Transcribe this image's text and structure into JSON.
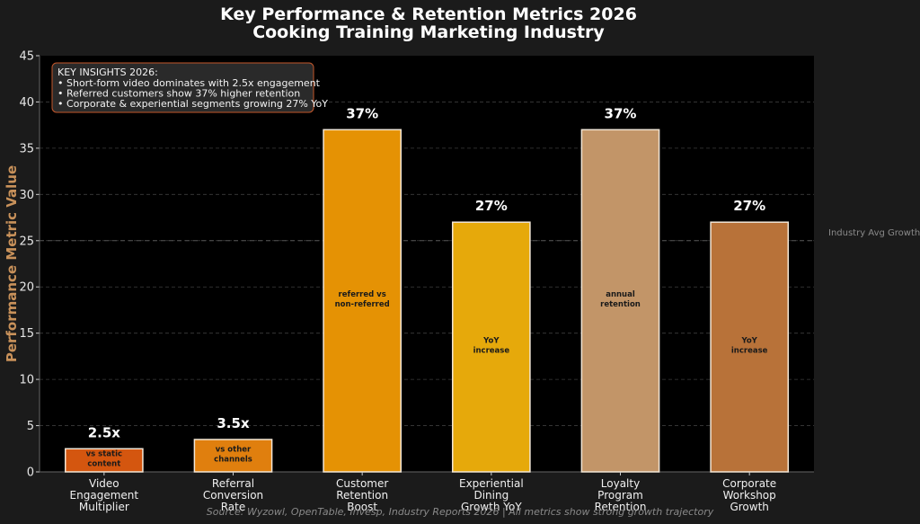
{
  "chart_data": {
    "type": "bar",
    "title": "Key Performance & Retention Metrics 2026",
    "subtitle": "Cooking Training Marketing Industry",
    "ylabel": "Performance Metric Value",
    "xlabel": "",
    "ylim": [
      0,
      45
    ],
    "yticks": [
      0,
      5,
      10,
      15,
      20,
      25,
      30,
      35,
      40,
      45
    ],
    "grid": true,
    "categories": [
      [
        "Video",
        "Engagement",
        "Multiplier"
      ],
      [
        "Referral",
        "Conversion",
        "Rate"
      ],
      [
        "Customer",
        "Retention",
        "Boost"
      ],
      [
        "Experiential",
        "Dining",
        "Growth YoY"
      ],
      [
        "Loyalty",
        "Program",
        "Retention"
      ],
      [
        "Corporate",
        "Workshop",
        "Growth"
      ]
    ],
    "values": [
      2.5,
      3.5,
      37,
      27,
      37,
      27
    ],
    "value_labels": [
      "2.5x",
      "3.5x",
      "37%",
      "27%",
      "37%",
      "27%"
    ],
    "bar_notes": [
      [
        "vs static",
        "content"
      ],
      [
        "vs other",
        "channels"
      ],
      [
        "referred vs",
        "non-referred"
      ],
      [
        "YoY",
        "increase"
      ],
      [
        "annual",
        "retention"
      ],
      [
        "YoY",
        "increase"
      ]
    ],
    "bar_colors": [
      "#d4560f",
      "#e07f0e",
      "#e59204",
      "#e6a90b",
      "#c29568",
      "#b87239"
    ],
    "reference_line": {
      "value": 25,
      "label": "Industry Avg Growth"
    },
    "insights": {
      "heading": "KEY INSIGHTS 2026:",
      "lines": [
        "• Short-form video dominates with 2.5x engagement",
        "• Referred customers show 37% higher retention",
        "• Corporate & experiential segments growing 27% YoY"
      ]
    },
    "source": "Source: Wyzowl, OpenTable, Invesp, Industry Reports 2026 | All metrics show strong growth trajectory"
  }
}
